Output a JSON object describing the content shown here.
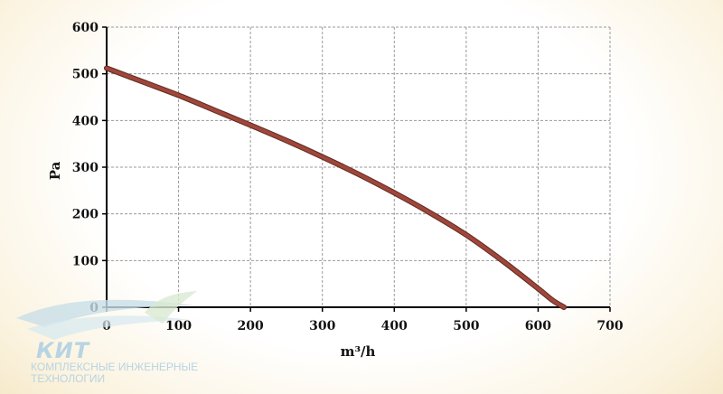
{
  "chart_data": {
    "type": "line",
    "xlabel": "m³/h",
    "ylabel": "Pa",
    "xlim": [
      0,
      700
    ],
    "ylim": [
      0,
      600
    ],
    "xticks": [
      0,
      100,
      200,
      300,
      400,
      500,
      600,
      700
    ],
    "yticks": [
      0,
      100,
      200,
      300,
      400,
      500,
      600
    ],
    "grid": true,
    "series": [
      {
        "color": "#a0463a",
        "x": [
          0,
          50,
          100,
          150,
          200,
          250,
          300,
          350,
          400,
          450,
          500,
          550,
          600,
          620,
          636
        ],
        "y": [
          512,
          483,
          454,
          422,
          390,
          357,
          322,
          285,
          245,
          202,
          155,
          100,
          40,
          15,
          0
        ]
      }
    ]
  },
  "watermark": {
    "brand": "КИТ",
    "line1": "КОМПЛЕКСНЫЕ ИНЖЕНЕРНЫЕ",
    "line2": "ТЕХНОЛОГИИ"
  }
}
